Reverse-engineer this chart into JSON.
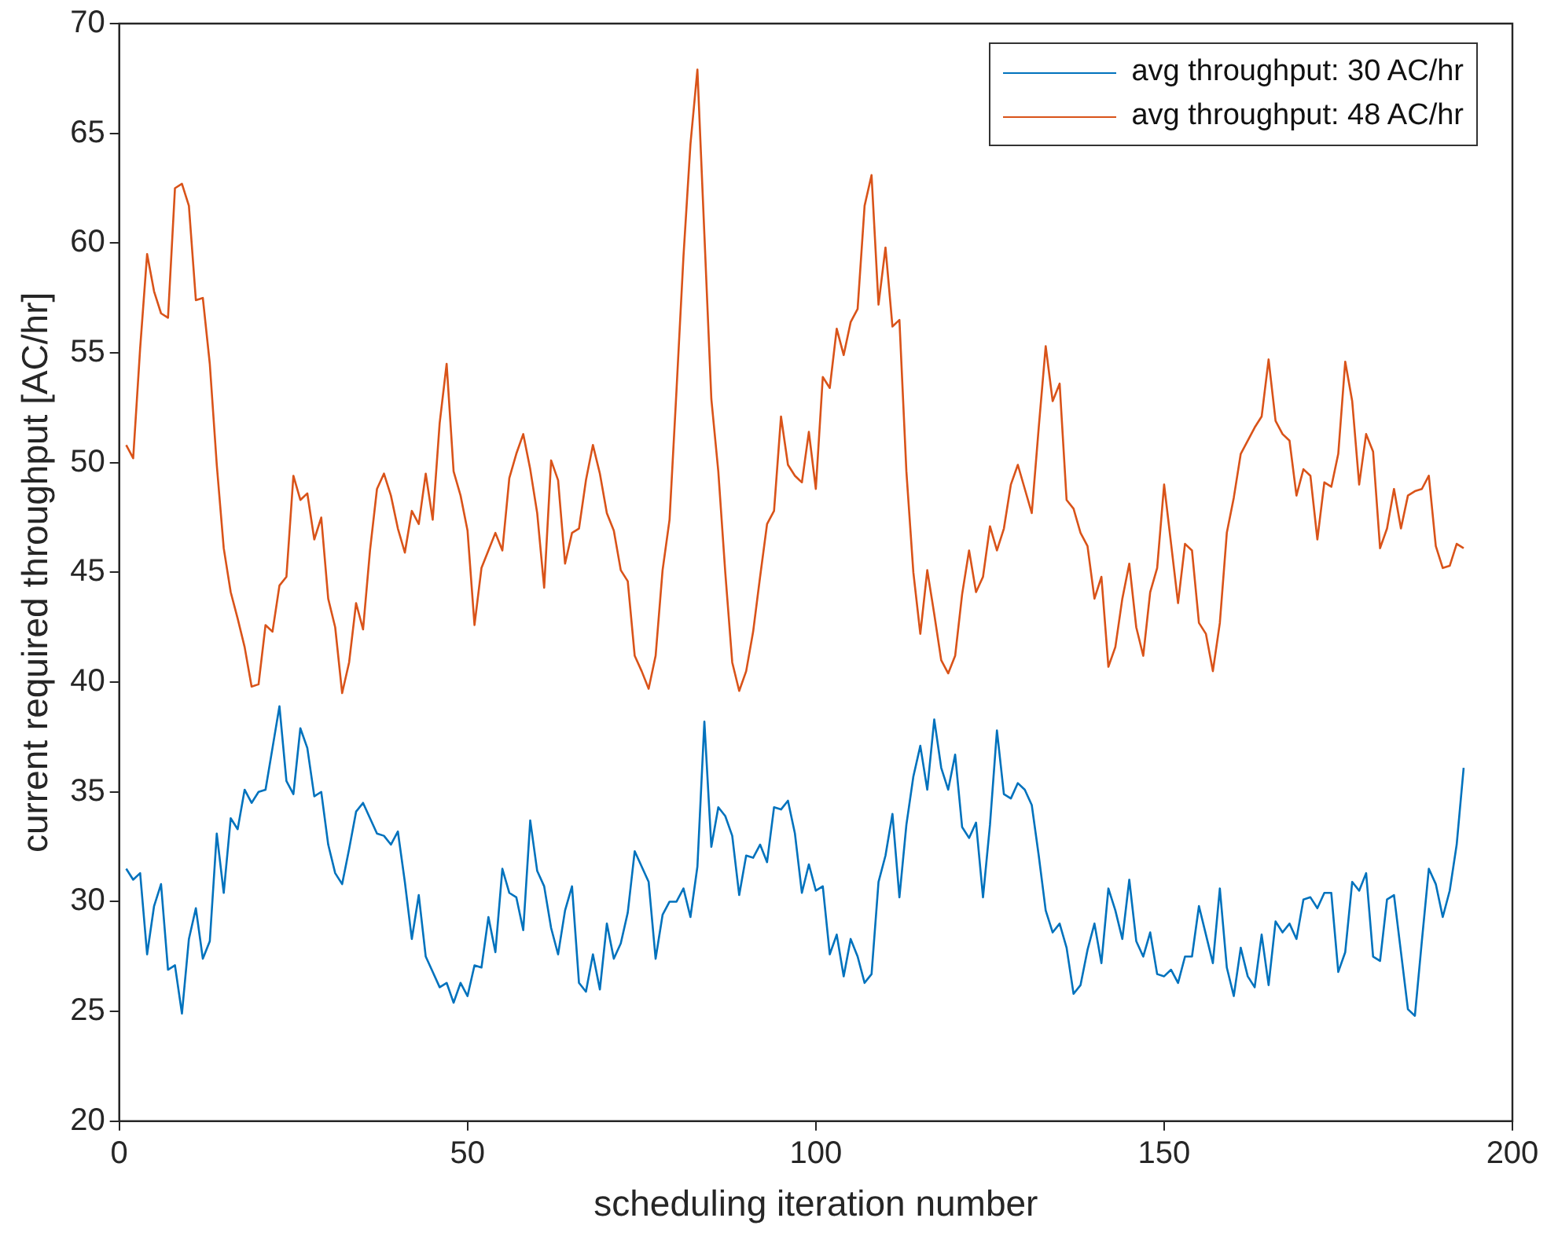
{
  "chart_data": {
    "type": "line",
    "xlabel": "scheduling iteration number",
    "ylabel": "current required throughput [AC/hr]",
    "x": [
      1,
      2,
      3,
      4,
      5,
      6,
      7,
      8,
      9,
      10,
      11,
      12,
      13,
      14,
      15,
      16,
      17,
      18,
      19,
      20,
      21,
      22,
      23,
      24,
      25,
      26,
      27,
      28,
      29,
      30,
      31,
      32,
      33,
      34,
      35,
      36,
      37,
      38,
      39,
      40,
      41,
      42,
      43,
      44,
      45,
      46,
      47,
      48,
      49,
      50,
      51,
      52,
      53,
      54,
      55,
      56,
      57,
      58,
      59,
      60,
      61,
      62,
      63,
      64,
      65,
      66,
      67,
      68,
      69,
      70,
      71,
      72,
      73,
      74,
      75,
      76,
      77,
      78,
      79,
      80,
      81,
      82,
      83,
      84,
      85,
      86,
      87,
      88,
      89,
      90,
      91,
      92,
      93,
      94,
      95,
      96,
      97,
      98,
      99,
      100,
      101,
      102,
      103,
      104,
      105,
      106,
      107,
      108,
      109,
      110,
      111,
      112,
      113,
      114,
      115,
      116,
      117,
      118,
      119,
      120,
      121,
      122,
      123,
      124,
      125,
      126,
      127,
      128,
      129,
      130,
      131,
      132,
      133,
      134,
      135,
      136,
      137,
      138,
      139,
      140,
      141,
      142,
      143,
      144,
      145,
      146,
      147,
      148,
      149,
      150,
      151,
      152,
      153,
      154,
      155,
      156,
      157,
      158,
      159,
      160,
      161,
      162,
      163,
      164,
      165,
      166,
      167,
      168,
      169,
      170,
      171,
      172,
      173,
      174,
      175,
      176,
      177,
      178,
      179,
      180,
      181,
      182,
      183,
      184,
      185,
      186,
      187,
      188,
      189,
      190,
      191,
      192,
      193
    ],
    "series": [
      {
        "name": "avg throughput: 30 AC/hr",
        "color": "#0072bd",
        "values": [
          31.5,
          31.0,
          31.3,
          27.6,
          29.8,
          30.8,
          26.9,
          27.1,
          24.9,
          28.3,
          29.7,
          27.4,
          28.2,
          33.1,
          30.4,
          33.8,
          33.3,
          35.1,
          34.5,
          35.0,
          35.1,
          37.0,
          38.9,
          35.5,
          34.9,
          37.9,
          37.0,
          34.8,
          35.0,
          32.6,
          31.3,
          30.8,
          32.4,
          34.1,
          34.5,
          33.8,
          33.1,
          33.0,
          32.6,
          33.2,
          30.9,
          28.3,
          30.3,
          27.5,
          26.8,
          26.1,
          26.3,
          25.4,
          26.3,
          25.7,
          27.1,
          27.0,
          29.3,
          27.7,
          31.5,
          30.4,
          30.2,
          28.7,
          33.7,
          31.4,
          30.7,
          28.8,
          27.6,
          29.6,
          30.7,
          26.3,
          25.9,
          27.6,
          26.0,
          29.0,
          27.4,
          28.1,
          29.5,
          32.3,
          31.6,
          30.9,
          27.4,
          29.4,
          30.0,
          30.0,
          30.6,
          29.3,
          31.6,
          38.2,
          32.5,
          34.3,
          33.9,
          33.0,
          30.3,
          32.1,
          32.0,
          32.6,
          31.8,
          34.3,
          34.2,
          34.6,
          33.1,
          30.4,
          31.7,
          30.5,
          30.7,
          27.6,
          28.5,
          26.6,
          28.3,
          27.5,
          26.3,
          26.7,
          30.9,
          32.1,
          34.0,
          30.2,
          33.5,
          35.7,
          37.1,
          35.1,
          38.3,
          36.1,
          35.1,
          36.7,
          33.4,
          32.9,
          33.6,
          30.2,
          33.5,
          37.8,
          34.9,
          34.7,
          35.4,
          35.1,
          34.4,
          32.1,
          29.6,
          28.6,
          29.0,
          27.9,
          25.8,
          26.2,
          27.8,
          29.0,
          27.2,
          30.6,
          29.6,
          28.3,
          31.0,
          28.2,
          27.5,
          28.6,
          26.7,
          26.6,
          26.9,
          26.3,
          27.5,
          27.5,
          29.8,
          28.5,
          27.2,
          30.6,
          27.0,
          25.7,
          27.9,
          26.6,
          26.1,
          28.5,
          26.2,
          29.1,
          28.6,
          29.0,
          28.3,
          30.1,
          30.2,
          29.7,
          30.4,
          30.4,
          26.8,
          27.7,
          30.9,
          30.5,
          31.3,
          27.5,
          27.3,
          30.1,
          30.3,
          27.7,
          25.1,
          24.8,
          28.2,
          31.5,
          30.8,
          29.3,
          30.5,
          32.6,
          36.1
        ]
      },
      {
        "name": "avg throughput: 48 AC/hr",
        "color": "#d95319",
        "values": [
          50.8,
          50.2,
          55.2,
          59.5,
          57.8,
          56.8,
          56.6,
          62.5,
          62.7,
          61.7,
          57.4,
          57.5,
          54.5,
          49.9,
          46.1,
          44.1,
          42.9,
          41.6,
          39.8,
          39.9,
          42.6,
          42.3,
          44.4,
          44.8,
          49.4,
          48.3,
          48.6,
          46.5,
          47.5,
          43.8,
          42.5,
          39.5,
          40.9,
          43.6,
          42.4,
          46.0,
          48.8,
          49.5,
          48.5,
          47.0,
          45.9,
          47.8,
          47.2,
          49.5,
          47.4,
          51.8,
          54.5,
          49.6,
          48.5,
          46.9,
          42.6,
          45.2,
          46.0,
          46.8,
          46.0,
          49.3,
          50.4,
          51.3,
          49.7,
          47.7,
          44.3,
          50.1,
          49.2,
          45.4,
          46.8,
          47.0,
          49.2,
          50.8,
          49.5,
          47.7,
          46.9,
          45.1,
          44.6,
          41.2,
          40.5,
          39.7,
          41.2,
          45.1,
          47.4,
          53.3,
          59.4,
          64.5,
          67.9,
          60.4,
          52.9,
          49.6,
          45.0,
          40.9,
          39.6,
          40.5,
          42.3,
          44.8,
          47.2,
          47.8,
          52.1,
          49.9,
          49.4,
          49.1,
          51.4,
          48.8,
          53.9,
          53.4,
          56.1,
          54.9,
          56.4,
          57.0,
          61.7,
          63.1,
          57.2,
          59.8,
          56.2,
          56.5,
          49.6,
          45.0,
          42.2,
          45.1,
          43.1,
          41.0,
          40.4,
          41.2,
          44.0,
          46.0,
          44.1,
          44.8,
          47.1,
          46.0,
          47.0,
          49.0,
          49.9,
          48.8,
          47.7,
          51.6,
          55.3,
          52.8,
          53.6,
          48.3,
          47.9,
          46.8,
          46.2,
          43.8,
          44.8,
          40.7,
          41.6,
          43.8,
          45.4,
          42.5,
          41.2,
          44.1,
          45.2,
          49.0,
          46.3,
          43.6,
          46.3,
          46.0,
          42.7,
          42.2,
          40.5,
          42.7,
          46.8,
          48.4,
          50.4,
          51.0,
          51.6,
          52.1,
          54.7,
          51.9,
          51.3,
          51.0,
          48.5,
          49.7,
          49.4,
          46.5,
          49.1,
          48.9,
          50.4,
          54.6,
          52.8,
          49.0,
          51.3,
          50.5,
          46.1,
          47.0,
          48.8,
          47.0,
          48.5,
          48.7,
          48.8,
          49.4,
          46.2,
          45.2,
          45.3,
          46.3,
          46.1
        ]
      }
    ],
    "xlim": [
      0,
      200
    ],
    "xticks": [
      0,
      50,
      100,
      150,
      200
    ],
    "ylim": [
      20,
      70
    ],
    "yticks": [
      20,
      25,
      30,
      35,
      40,
      45,
      50,
      55,
      60,
      65,
      70
    ],
    "legend": "top right",
    "grid": false,
    "marker": "none",
    "line_style": "solid"
  }
}
